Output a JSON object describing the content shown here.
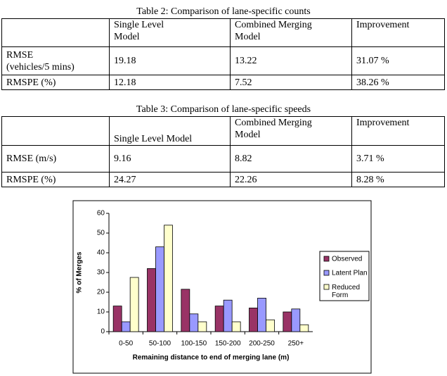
{
  "tables": [
    {
      "caption": "Table 2: Comparison of lane-specific counts",
      "header": [
        "Single Level\nModel",
        "Combined Merging\nModel",
        "Improvement"
      ],
      "rows": [
        [
          "RMSE\n(vehicles/5 mins)",
          "19.18",
          "13.22",
          "31.07 %"
        ],
        [
          "RMSPE (%)",
          "12.18",
          "7.52",
          "38.26 %"
        ]
      ]
    },
    {
      "caption": "Table 3: Comparison of lane-specific speeds",
      "header": [
        "Single Level Model",
        "Combined Merging\nModel",
        "Improvement"
      ],
      "rows": [
        [
          "RMSE (m/s)",
          "9.16",
          "8.82",
          "3.71 %"
        ],
        [
          "RMSPE (%)",
          "24.27",
          "22.26",
          "8.28 %"
        ]
      ]
    }
  ],
  "chart_data": {
    "type": "bar",
    "x_label": "Remaining distance to end of merging lane (m)",
    "y_label": "% of Merges",
    "categories": [
      "0-50",
      "50-100",
      "100-150",
      "150-200",
      "200-250",
      "250+"
    ],
    "series": [
      {
        "name": "Observed",
        "color": "#993366",
        "values": [
          13,
          32,
          21.5,
          13,
          12,
          10
        ]
      },
      {
        "name": "Latent Plan",
        "color": "#9999ff",
        "values": [
          5,
          43,
          9,
          16,
          17,
          11.5
        ]
      },
      {
        "name": "Reduced\nForm",
        "color": "#ffffcc",
        "values": [
          27.5,
          54,
          5,
          5,
          6,
          3.5
        ]
      }
    ],
    "ylim": [
      0,
      60
    ],
    "yticks": [
      0,
      10,
      20,
      30,
      40,
      50,
      60
    ],
    "legend": "right"
  }
}
